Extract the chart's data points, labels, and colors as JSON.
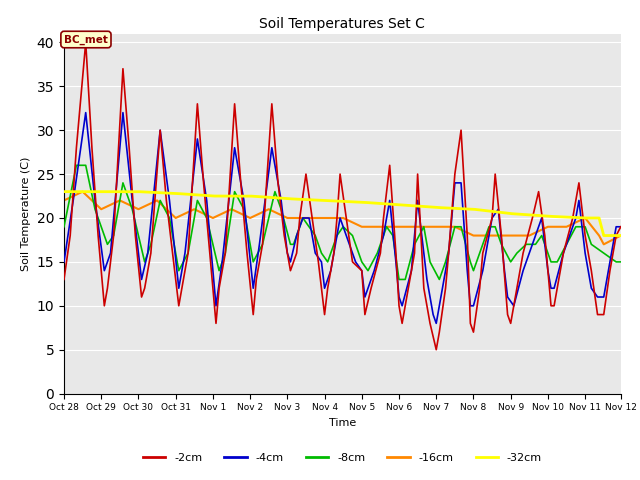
{
  "title": "Soil Temperatures Set C",
  "xlabel": "Time",
  "ylabel": "Soil Temperature (C)",
  "ylim": [
    0,
    41
  ],
  "yticks": [
    0,
    5,
    10,
    15,
    20,
    25,
    30,
    35,
    40
  ],
  "xtick_labels": [
    "Oct 28",
    "Oct 29",
    "Oct 30",
    "Oct 31",
    "Nov 1",
    "Nov 2",
    "Nov 3",
    "Nov 4",
    "Nov 5",
    "Nov 6",
    "Nov 7",
    "Nov 8",
    "Nov 9",
    "Nov 10",
    "Nov 11",
    "Nov 12"
  ],
  "annotation_text": "BC_met",
  "background_color": "#e8e8e8",
  "series": {
    "neg2cm": {
      "color": "#cc0000",
      "label": "-2cm",
      "linewidth": 1.2
    },
    "neg4cm": {
      "color": "#0000cc",
      "label": "-4cm",
      "linewidth": 1.2
    },
    "neg8cm": {
      "color": "#00bb00",
      "label": "-8cm",
      "linewidth": 1.2
    },
    "neg16cm": {
      "color": "#ff8800",
      "label": "-16cm",
      "linewidth": 1.5
    },
    "neg32cm": {
      "color": "#ffff00",
      "label": "-32cm",
      "linewidth": 2.0
    }
  },
  "data_2cm": [
    [
      0,
      13
    ],
    [
      4,
      18
    ],
    [
      8,
      28
    ],
    [
      14,
      40
    ],
    [
      18,
      28
    ],
    [
      22,
      18
    ],
    [
      26,
      10
    ],
    [
      28,
      12
    ],
    [
      32,
      18
    ],
    [
      38,
      37
    ],
    [
      42,
      28
    ],
    [
      46,
      18
    ],
    [
      50,
      11
    ],
    [
      52,
      12
    ],
    [
      56,
      16
    ],
    [
      62,
      30
    ],
    [
      66,
      22
    ],
    [
      70,
      16
    ],
    [
      74,
      10
    ],
    [
      76,
      12
    ],
    [
      80,
      16
    ],
    [
      86,
      33
    ],
    [
      90,
      24
    ],
    [
      94,
      16
    ],
    [
      98,
      8
    ],
    [
      100,
      12
    ],
    [
      104,
      16
    ],
    [
      110,
      33
    ],
    [
      114,
      24
    ],
    [
      118,
      16
    ],
    [
      122,
      9
    ],
    [
      124,
      13
    ],
    [
      128,
      17
    ],
    [
      134,
      33
    ],
    [
      138,
      24
    ],
    [
      142,
      18
    ],
    [
      144,
      16
    ],
    [
      146,
      14
    ],
    [
      150,
      16
    ],
    [
      152,
      20
    ],
    [
      156,
      25
    ],
    [
      160,
      20
    ],
    [
      164,
      15
    ],
    [
      168,
      9
    ],
    [
      170,
      12
    ],
    [
      174,
      16
    ],
    [
      176,
      20
    ],
    [
      178,
      25
    ],
    [
      182,
      20
    ],
    [
      186,
      15
    ],
    [
      192,
      14
    ],
    [
      194,
      9
    ],
    [
      198,
      12
    ],
    [
      204,
      16
    ],
    [
      206,
      20
    ],
    [
      210,
      26
    ],
    [
      214,
      16
    ],
    [
      216,
      10
    ],
    [
      218,
      8
    ],
    [
      222,
      12
    ],
    [
      226,
      16
    ],
    [
      228,
      25
    ],
    [
      232,
      12
    ],
    [
      236,
      8
    ],
    [
      240,
      5
    ],
    [
      242,
      7
    ],
    [
      246,
      12
    ],
    [
      248,
      16
    ],
    [
      252,
      25
    ],
    [
      256,
      30
    ],
    [
      260,
      18
    ],
    [
      262,
      8
    ],
    [
      264,
      7
    ],
    [
      268,
      12
    ],
    [
      270,
      16
    ],
    [
      276,
      20
    ],
    [
      278,
      25
    ],
    [
      282,
      18
    ],
    [
      286,
      9
    ],
    [
      288,
      8
    ],
    [
      292,
      12
    ],
    [
      296,
      16
    ],
    [
      302,
      20
    ],
    [
      306,
      23
    ],
    [
      310,
      18
    ],
    [
      314,
      10
    ],
    [
      316,
      10
    ],
    [
      318,
      12
    ],
    [
      322,
      16
    ],
    [
      328,
      20
    ],
    [
      332,
      24
    ],
    [
      336,
      18
    ],
    [
      340,
      14
    ],
    [
      344,
      9
    ],
    [
      348,
      9
    ],
    [
      352,
      14
    ],
    [
      356,
      18
    ],
    [
      359,
      19
    ]
  ],
  "data_4cm": [
    [
      0,
      15
    ],
    [
      6,
      22
    ],
    [
      14,
      32
    ],
    [
      20,
      22
    ],
    [
      26,
      14
    ],
    [
      30,
      16
    ],
    [
      38,
      32
    ],
    [
      44,
      22
    ],
    [
      50,
      13
    ],
    [
      54,
      16
    ],
    [
      62,
      30
    ],
    [
      68,
      22
    ],
    [
      74,
      12
    ],
    [
      78,
      16
    ],
    [
      86,
      29
    ],
    [
      92,
      22
    ],
    [
      98,
      10
    ],
    [
      102,
      15
    ],
    [
      110,
      28
    ],
    [
      116,
      22
    ],
    [
      122,
      12
    ],
    [
      126,
      17
    ],
    [
      134,
      28
    ],
    [
      140,
      22
    ],
    [
      144,
      16
    ],
    [
      146,
      15
    ],
    [
      150,
      18
    ],
    [
      154,
      20
    ],
    [
      158,
      20
    ],
    [
      162,
      16
    ],
    [
      166,
      15
    ],
    [
      168,
      12
    ],
    [
      172,
      14
    ],
    [
      176,
      18
    ],
    [
      178,
      20
    ],
    [
      184,
      17
    ],
    [
      188,
      15
    ],
    [
      192,
      14
    ],
    [
      194,
      11
    ],
    [
      200,
      14
    ],
    [
      206,
      18
    ],
    [
      210,
      22
    ],
    [
      214,
      15
    ],
    [
      216,
      11
    ],
    [
      218,
      10
    ],
    [
      224,
      14
    ],
    [
      228,
      22
    ],
    [
      234,
      13
    ],
    [
      238,
      9
    ],
    [
      240,
      8
    ],
    [
      242,
      10
    ],
    [
      248,
      16
    ],
    [
      252,
      24
    ],
    [
      256,
      24
    ],
    [
      260,
      14
    ],
    [
      262,
      10
    ],
    [
      264,
      10
    ],
    [
      270,
      14
    ],
    [
      276,
      20
    ],
    [
      280,
      21
    ],
    [
      284,
      14
    ],
    [
      286,
      11
    ],
    [
      290,
      10
    ],
    [
      296,
      14
    ],
    [
      302,
      17
    ],
    [
      308,
      20
    ],
    [
      312,
      14
    ],
    [
      314,
      12
    ],
    [
      316,
      12
    ],
    [
      322,
      16
    ],
    [
      330,
      20
    ],
    [
      332,
      22
    ],
    [
      336,
      16
    ],
    [
      340,
      12
    ],
    [
      344,
      11
    ],
    [
      348,
      11
    ],
    [
      356,
      19
    ],
    [
      359,
      19
    ]
  ],
  "data_8cm": [
    [
      0,
      19
    ],
    [
      8,
      26
    ],
    [
      14,
      26
    ],
    [
      20,
      21
    ],
    [
      28,
      17
    ],
    [
      32,
      18
    ],
    [
      38,
      24
    ],
    [
      44,
      21
    ],
    [
      52,
      15
    ],
    [
      56,
      17
    ],
    [
      62,
      22
    ],
    [
      68,
      20
    ],
    [
      74,
      14
    ],
    [
      80,
      16
    ],
    [
      86,
      22
    ],
    [
      92,
      20
    ],
    [
      100,
      14
    ],
    [
      104,
      16
    ],
    [
      110,
      23
    ],
    [
      116,
      21
    ],
    [
      122,
      15
    ],
    [
      128,
      17
    ],
    [
      136,
      23
    ],
    [
      140,
      21
    ],
    [
      146,
      17
    ],
    [
      148,
      17
    ],
    [
      154,
      20
    ],
    [
      158,
      19
    ],
    [
      162,
      18
    ],
    [
      166,
      16
    ],
    [
      170,
      15
    ],
    [
      176,
      18
    ],
    [
      180,
      19
    ],
    [
      186,
      18
    ],
    [
      192,
      15
    ],
    [
      196,
      14
    ],
    [
      202,
      16
    ],
    [
      208,
      19
    ],
    [
      212,
      18
    ],
    [
      216,
      13
    ],
    [
      220,
      13
    ],
    [
      226,
      17
    ],
    [
      232,
      19
    ],
    [
      236,
      15
    ],
    [
      242,
      13
    ],
    [
      246,
      15
    ],
    [
      252,
      19
    ],
    [
      256,
      19
    ],
    [
      262,
      15
    ],
    [
      264,
      14
    ],
    [
      268,
      16
    ],
    [
      274,
      19
    ],
    [
      278,
      19
    ],
    [
      282,
      17
    ],
    [
      288,
      15
    ],
    [
      292,
      16
    ],
    [
      298,
      17
    ],
    [
      304,
      17
    ],
    [
      308,
      18
    ],
    [
      314,
      15
    ],
    [
      318,
      15
    ],
    [
      324,
      17
    ],
    [
      330,
      19
    ],
    [
      336,
      19
    ],
    [
      340,
      17
    ],
    [
      348,
      16
    ],
    [
      356,
      15
    ],
    [
      359,
      15
    ]
  ],
  "data_16cm": [
    [
      0,
      22
    ],
    [
      12,
      23
    ],
    [
      24,
      21
    ],
    [
      36,
      22
    ],
    [
      48,
      21
    ],
    [
      60,
      22
    ],
    [
      72,
      20
    ],
    [
      84,
      21
    ],
    [
      96,
      20
    ],
    [
      108,
      21
    ],
    [
      120,
      20
    ],
    [
      132,
      21
    ],
    [
      144,
      20
    ],
    [
      156,
      20
    ],
    [
      168,
      20
    ],
    [
      180,
      20
    ],
    [
      192,
      19
    ],
    [
      204,
      19
    ],
    [
      216,
      19
    ],
    [
      228,
      19
    ],
    [
      240,
      19
    ],
    [
      252,
      19
    ],
    [
      264,
      18
    ],
    [
      276,
      18
    ],
    [
      288,
      18
    ],
    [
      300,
      18
    ],
    [
      312,
      19
    ],
    [
      324,
      19
    ],
    [
      336,
      20
    ],
    [
      345,
      18
    ],
    [
      348,
      17
    ],
    [
      359,
      18
    ]
  ],
  "data_32cm": [
    [
      0,
      23
    ],
    [
      24,
      23
    ],
    [
      48,
      23
    ],
    [
      72,
      22.8
    ],
    [
      96,
      22.5
    ],
    [
      120,
      22.5
    ],
    [
      144,
      22.2
    ],
    [
      168,
      22
    ],
    [
      192,
      21.8
    ],
    [
      216,
      21.5
    ],
    [
      240,
      21.2
    ],
    [
      264,
      21
    ],
    [
      288,
      20.5
    ],
    [
      312,
      20.2
    ],
    [
      336,
      20
    ],
    [
      345,
      20
    ],
    [
      348,
      18
    ],
    [
      359,
      18
    ]
  ]
}
